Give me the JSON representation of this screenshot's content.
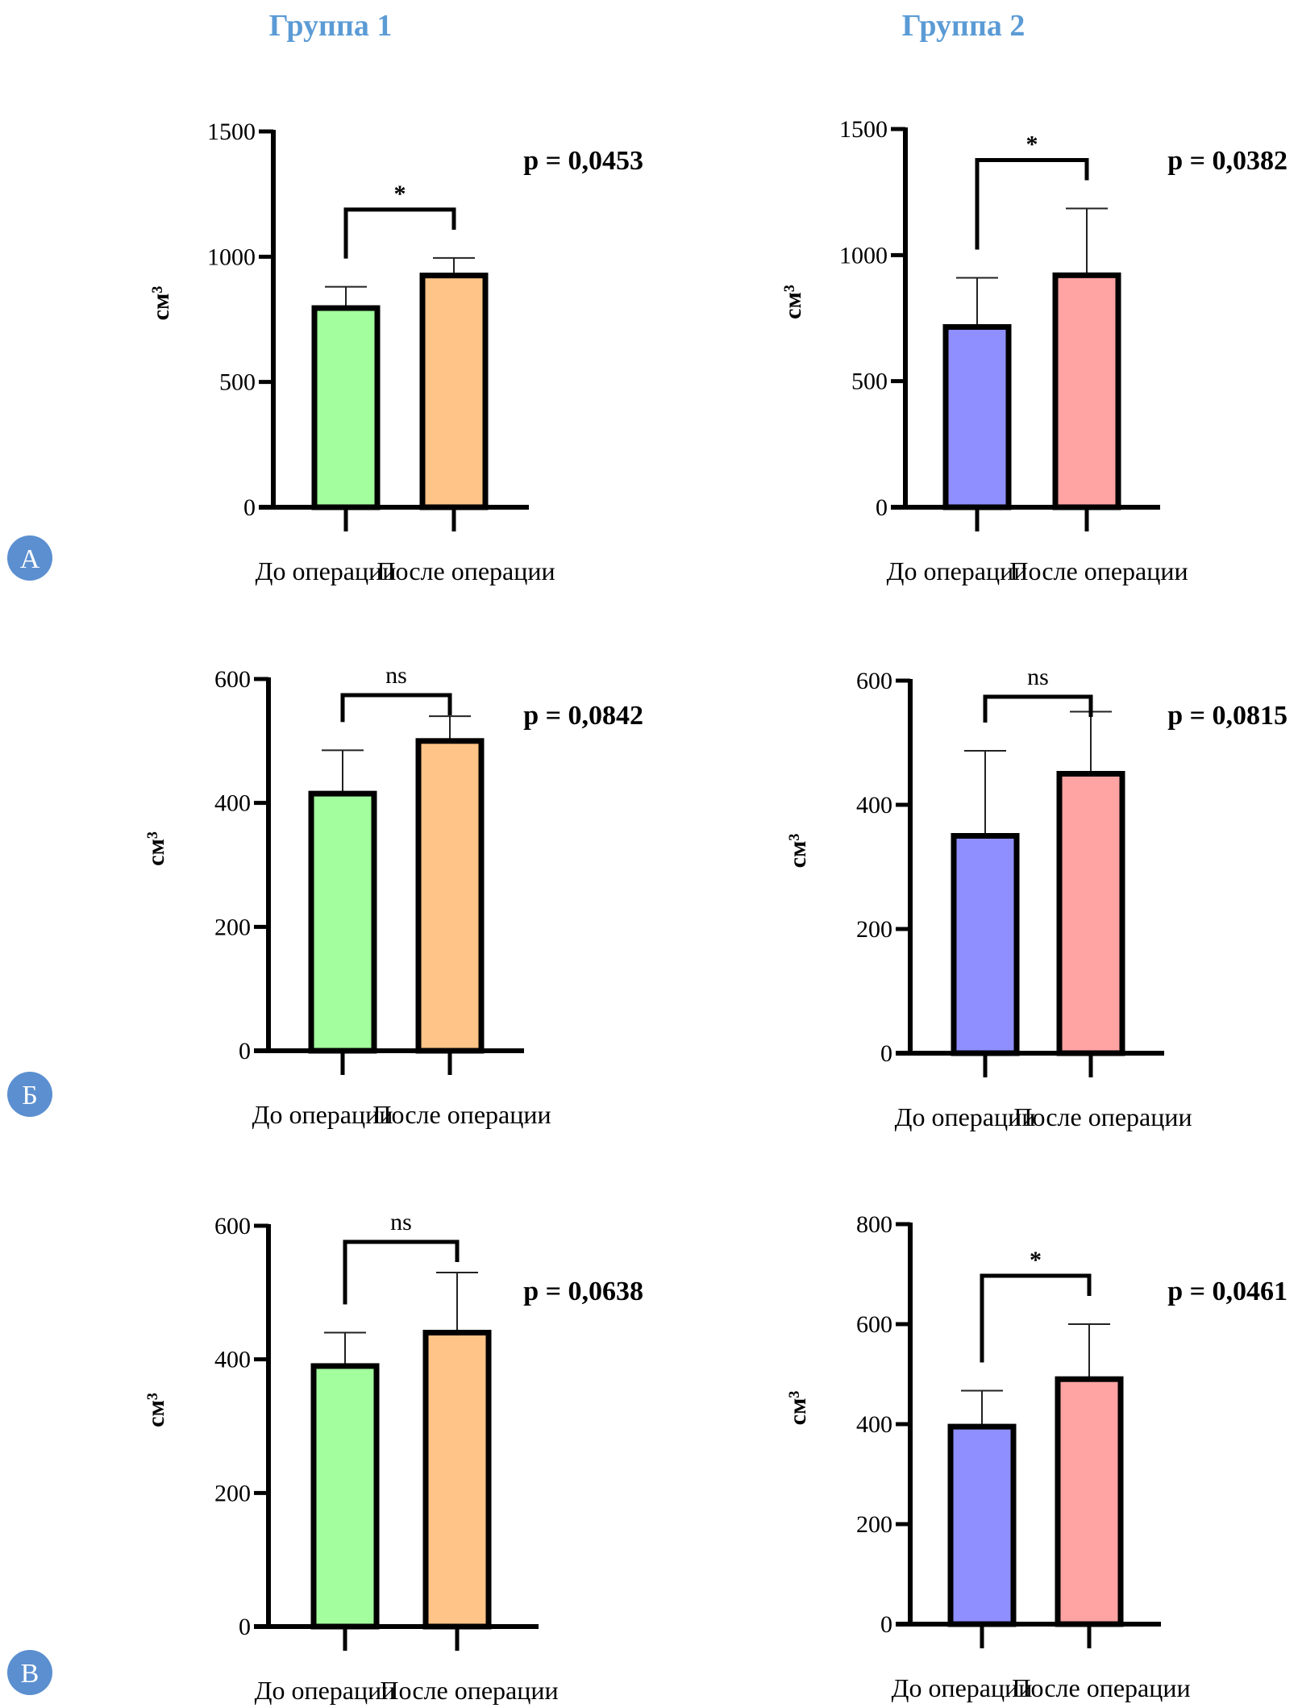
{
  "column_titles": [
    "Группа 1",
    "Группа 2"
  ],
  "title_color": "#5b9bd5",
  "panel_letters": [
    "А",
    "Б",
    "В"
  ],
  "panel_letter_color": "#5b8fd0",
  "chart_data": [
    {
      "type": "bar",
      "row": "А",
      "column": "Группа 1",
      "categories": [
        "До операции",
        "После операции"
      ],
      "values": [
        795,
        925
      ],
      "error_upper": [
        880,
        995
      ],
      "ylabel": "см³",
      "ylim": [
        0,
        1500
      ],
      "yticks": [
        0,
        500,
        1000,
        1500
      ],
      "significance": "*",
      "p_value": "p = 0,0453",
      "colors": [
        "#a3ff9e",
        "#ffc487"
      ]
    },
    {
      "type": "bar",
      "row": "А",
      "column": "Группа 2",
      "categories": [
        "До операции",
        "После операции"
      ],
      "values": [
        715,
        920
      ],
      "error_upper": [
        910,
        1185
      ],
      "ylabel": "см³",
      "ylim": [
        0,
        1500
      ],
      "yticks": [
        0,
        500,
        1000,
        1500
      ],
      "significance": "*",
      "p_value": "p = 0,0382",
      "colors": [
        "#8f8fff",
        "#ffa3a3"
      ]
    },
    {
      "type": "bar",
      "row": "Б",
      "column": "Группа 1",
      "categories": [
        "До операции",
        "После операции"
      ],
      "values": [
        415,
        500
      ],
      "error_upper": [
        485,
        540
      ],
      "ylabel": "см³",
      "ylim": [
        0,
        600
      ],
      "yticks": [
        0,
        200,
        400,
        600
      ],
      "significance": "ns",
      "p_value": "p = 0,0842",
      "colors": [
        "#a3ff9e",
        "#ffc487"
      ]
    },
    {
      "type": "bar",
      "row": "Б",
      "column": "Группа 2",
      "categories": [
        "До операции",
        "После операции"
      ],
      "values": [
        350,
        450
      ],
      "error_upper": [
        487,
        550
      ],
      "ylabel": "см³",
      "ylim": [
        0,
        600
      ],
      "yticks": [
        0,
        200,
        400,
        600
      ],
      "significance": "ns",
      "p_value": "p = 0,0815",
      "colors": [
        "#8f8fff",
        "#ffa3a3"
      ]
    },
    {
      "type": "bar",
      "row": "В",
      "column": "Группа 1",
      "categories": [
        "До операции",
        "После операции"
      ],
      "values": [
        390,
        440
      ],
      "error_upper": [
        440,
        530
      ],
      "ylabel": "см³",
      "ylim": [
        0,
        600
      ],
      "yticks": [
        0,
        200,
        400,
        600
      ],
      "significance": "ns",
      "p_value": "p = 0,0638",
      "colors": [
        "#a3ff9e",
        "#ffc487"
      ]
    },
    {
      "type": "bar",
      "row": "В",
      "column": "Группа 2",
      "categories": [
        "До операции",
        "После операции"
      ],
      "values": [
        395,
        490
      ],
      "error_upper": [
        467,
        600
      ],
      "ylabel": "см³",
      "ylim": [
        0,
        800
      ],
      "yticks": [
        0,
        200,
        400,
        600,
        800
      ],
      "significance": "*",
      "p_value": "p = 0,0461",
      "colors": [
        "#8f8fff",
        "#ffa3a3"
      ]
    }
  ]
}
